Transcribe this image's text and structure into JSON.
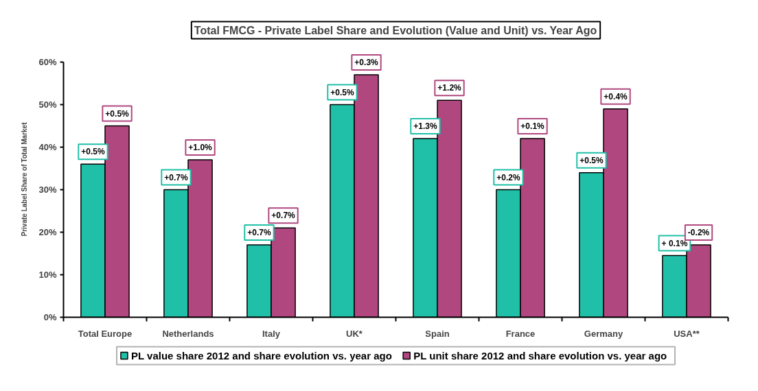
{
  "chart_data": {
    "type": "bar",
    "title": "Total FMCG - Private Label Share and Evolution (Value and Unit) vs. Year Ago",
    "ylabel": "Private Label Share of Total Market",
    "categories": [
      "Total Europe",
      "Netherlands",
      "Italy",
      "UK*",
      "Spain",
      "France",
      "Germany",
      "USA**"
    ],
    "series": [
      {
        "name": "PL value share 2012 and share evolution vs. year ago",
        "color": "#20c0a8",
        "values": [
          36,
          30,
          17,
          50,
          42,
          30,
          34,
          14.5
        ]
      },
      {
        "name": "PL unit share 2012 and share evolution vs. year ago",
        "color": "#b0477f",
        "values": [
          45,
          37,
          21,
          57,
          51,
          42,
          49,
          17
        ]
      }
    ],
    "annotations": [
      {
        "text": "+0.5%",
        "x": "Total Europe",
        "y": 36
      },
      {
        "text": "+0.5%",
        "x": "Total Europe",
        "y": 45
      },
      {
        "text": "+0.7%",
        "x": "Netherlands",
        "y": 30
      },
      {
        "text": "+1.0%",
        "x": "Netherlands",
        "y": 37
      },
      {
        "text": "+0.7%",
        "x": "Italy",
        "y": 17
      },
      {
        "text": "+0.7%",
        "x": "Italy",
        "y": 21
      },
      {
        "text": "+0.5%",
        "x": "UK*",
        "y": 50
      },
      {
        "text": "+0.3%",
        "x": "UK*",
        "y": 57
      },
      {
        "text": "+1.3%",
        "x": "Spain",
        "y": 42
      },
      {
        "text": "+1.2%",
        "x": "Spain",
        "y": 51
      },
      {
        "text": "+0.2%",
        "x": "France",
        "y": 30
      },
      {
        "text": "+0.1%",
        "x": "France",
        "y": 42
      },
      {
        "text": "+0.5%",
        "x": "Germany",
        "y": 34
      },
      {
        "text": "+0.4%",
        "x": "Germany",
        "y": 49
      },
      {
        "text": "+ 0.1%",
        "x": "USA**",
        "y": 14.5
      },
      {
        "text": "-0.2%",
        "x": "USA**",
        "y": 17
      }
    ],
    "ylim": [
      0,
      60
    ],
    "yticks": [
      {
        "value": 0,
        "label": "0%"
      },
      {
        "value": 10,
        "label": "10%"
      },
      {
        "value": 20,
        "label": "20%"
      },
      {
        "value": 30,
        "label": "30%"
      },
      {
        "value": 40,
        "label": "40%"
      },
      {
        "value": 50,
        "label": "50%"
      },
      {
        "value": 60,
        "label": "60%"
      }
    ],
    "legend": "bottom"
  }
}
